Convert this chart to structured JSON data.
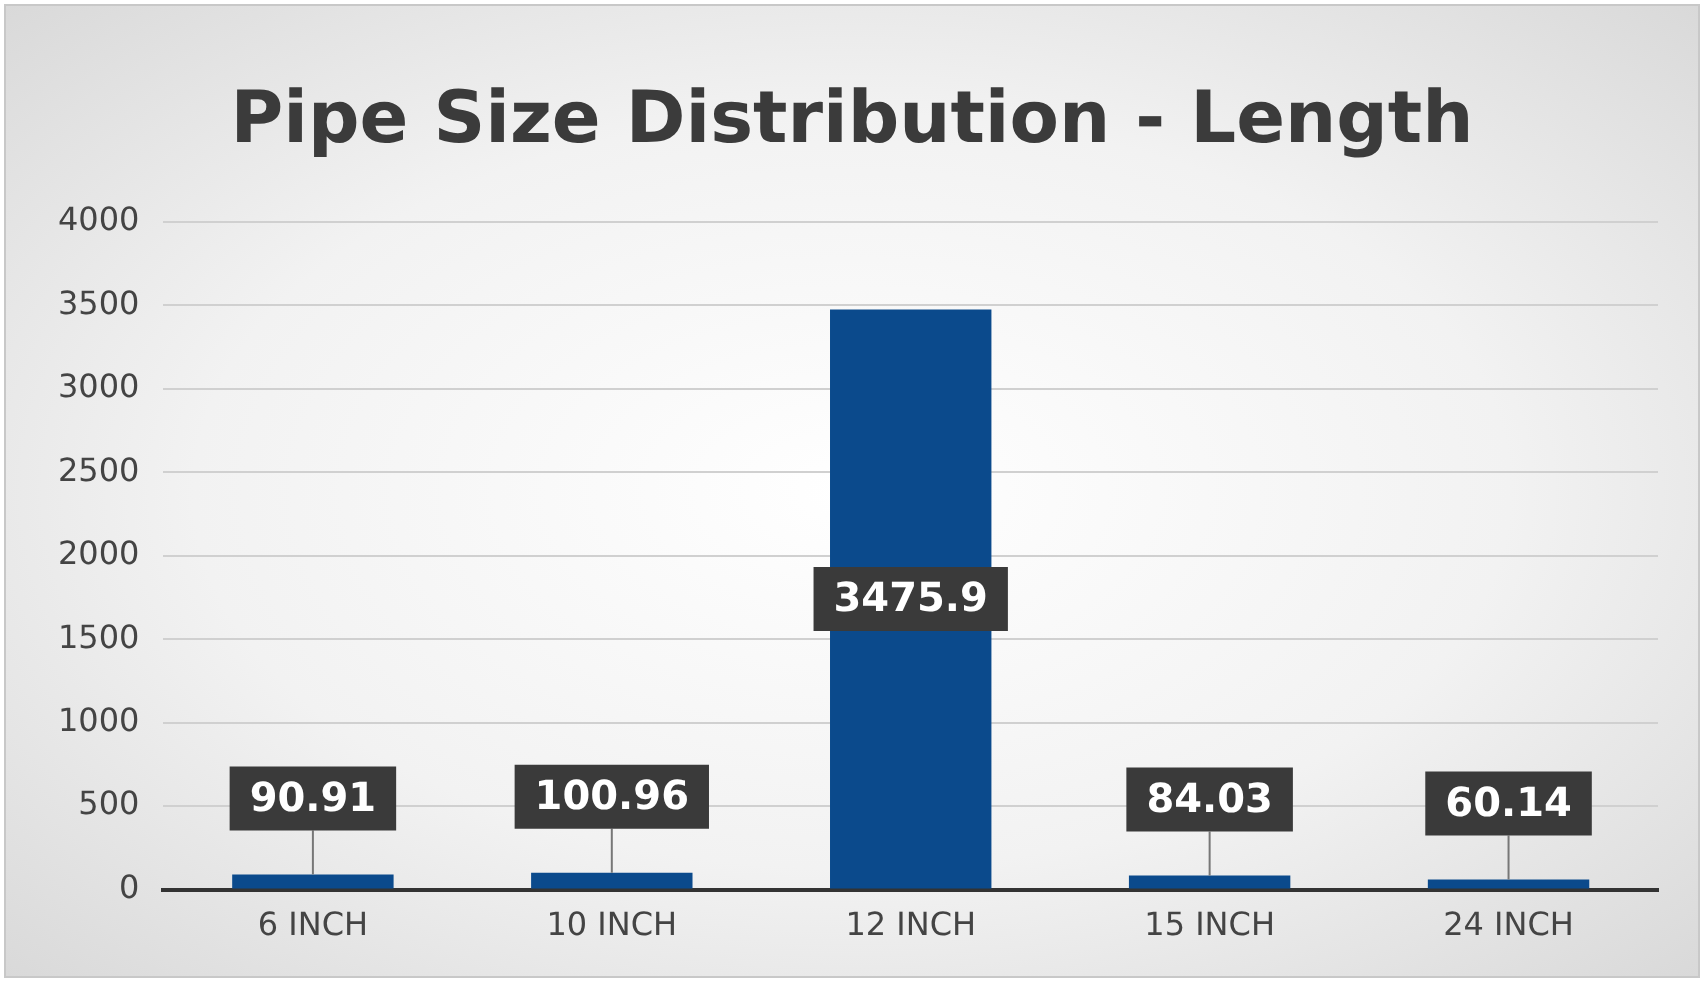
{
  "chart_data": {
    "type": "bar",
    "title": "Pipe Size Distribution - Length",
    "categories": [
      "6 INCH",
      "10 INCH",
      "12 INCH",
      "15 INCH",
      "24 INCH"
    ],
    "values": [
      90.91,
      100.96,
      3475.9,
      84.03,
      60.14
    ],
    "color": "#0b4a8c",
    "ylim": [
      0,
      4000
    ],
    "yticks": [
      0,
      500,
      1000,
      1500,
      2000,
      2500,
      3000,
      3500,
      4000
    ],
    "grid": "y",
    "data_labels": true,
    "legend": false
  }
}
